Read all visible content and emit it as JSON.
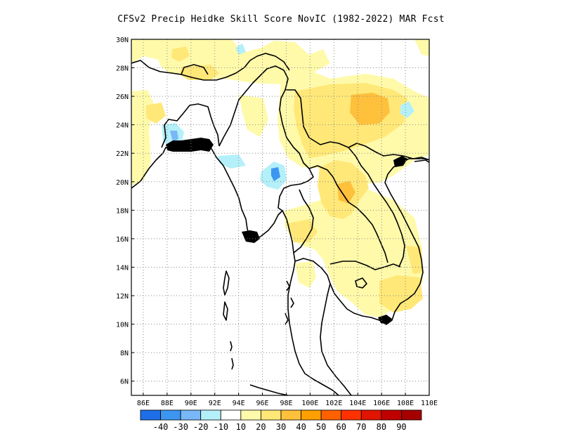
{
  "title": "CFSv2 Precip Heidke Skill Score NovIC (1982-2022) MAR Fcst",
  "map": {
    "lon_range": [
      85,
      110
    ],
    "lat_range": [
      5,
      30
    ],
    "lon_ticks": [
      86,
      88,
      90,
      92,
      94,
      96,
      98,
      100,
      102,
      104,
      106,
      108,
      110
    ],
    "lat_ticks": [
      6,
      8,
      10,
      12,
      14,
      16,
      18,
      20,
      22,
      24,
      26,
      28,
      30
    ],
    "lon_labels": [
      "86E",
      "88E",
      "90E",
      "92E",
      "94E",
      "96E",
      "98E",
      "100E",
      "102E",
      "104E",
      "106E",
      "108E",
      "110E"
    ],
    "lat_labels": [
      "6N",
      "8N",
      "10N",
      "12N",
      "14N",
      "16N",
      "18N",
      "20N",
      "22N",
      "24N",
      "26N",
      "28N",
      "30N"
    ],
    "gridlines": "dotted"
  },
  "colorbar": {
    "labels": [
      "-40",
      "-30",
      "-20",
      "-10",
      "10",
      "20",
      "30",
      "40",
      "50",
      "60",
      "70",
      "80",
      "90"
    ],
    "colors": [
      "#1e6ee8",
      "#3c96f0",
      "#78b8f8",
      "#b4f0fa",
      "#ffffff",
      "#fffaaa",
      "#ffe878",
      "#ffc03c",
      "#ffa000",
      "#ff6000",
      "#ff3200",
      "#e11400",
      "#c00000",
      "#a50000"
    ]
  }
}
